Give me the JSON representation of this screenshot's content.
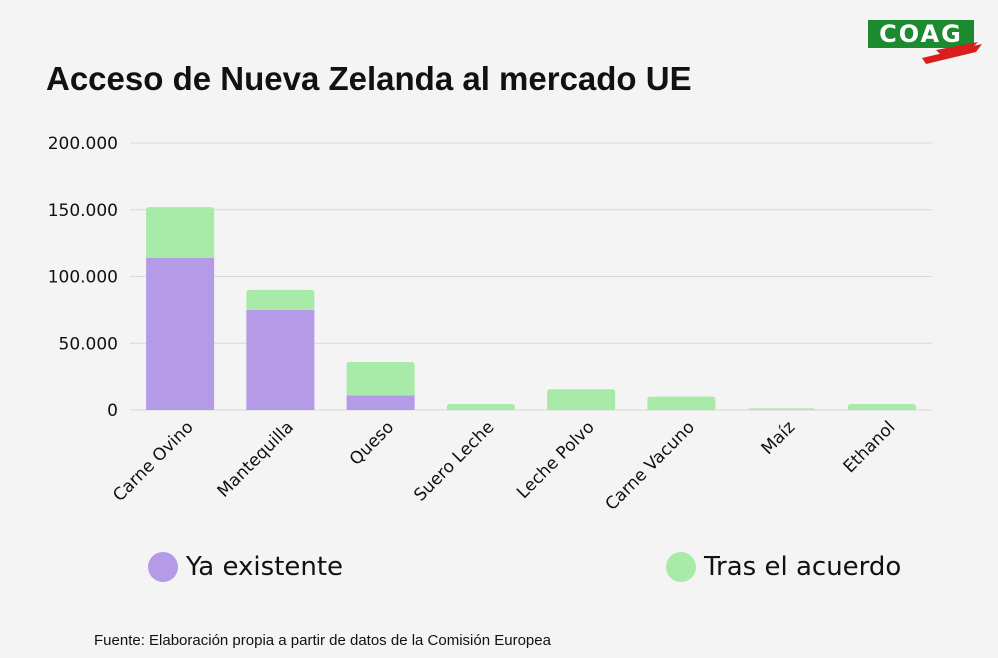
{
  "title": "Acceso de Nueva Zelanda al mercado UE",
  "logo": {
    "text": "COAG",
    "icon": "coag-logo"
  },
  "source": "Fuente: Elaboración propia a partir de datos de la Comisión Europea",
  "colors": {
    "existing": "#b59ae8",
    "new": "#a8eaa8",
    "grid": "#d8d8d8",
    "background": "#f4f4f4"
  },
  "chart_data": {
    "type": "bar",
    "stacked": true,
    "categories": [
      "Carne Ovino",
      "Mantequilla",
      "Queso",
      "Suero Leche",
      "Leche Polvo",
      "Carne Vacuno",
      "Maíz",
      "Ethanol"
    ],
    "series": [
      {
        "name": "Ya existente",
        "color": "#b59ae8",
        "values": [
          114000,
          75000,
          11000,
          0,
          0,
          0,
          0,
          0
        ]
      },
      {
        "name": "Tras el acuerdo",
        "color": "#a8eaa8",
        "values": [
          38000,
          15000,
          25000,
          4500,
          15500,
          10000,
          1200,
          4500
        ]
      }
    ],
    "y_ticks": [
      "0",
      "50.000",
      "100.000",
      "150.000",
      "200.000"
    ],
    "ylim": [
      0,
      200000
    ],
    "grid": true,
    "legend_position": "bottom"
  }
}
